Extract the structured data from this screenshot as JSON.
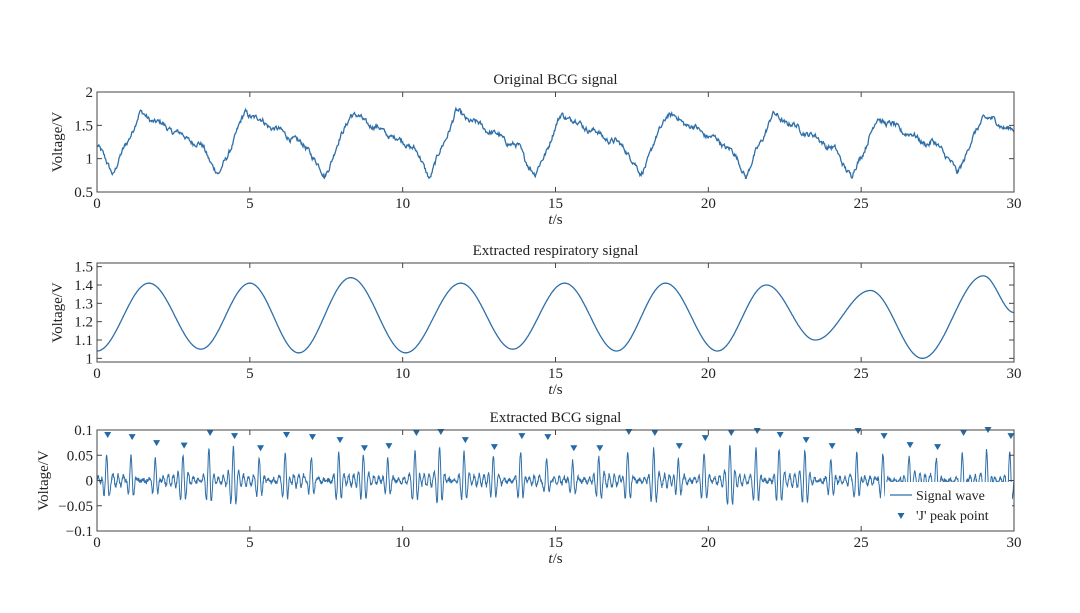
{
  "colors": {
    "line": "#2f6fa8",
    "marker": "#2369a6",
    "axis": "#444444"
  },
  "chart_data": [
    {
      "type": "line",
      "title": "Original BCG signal",
      "xlabel_italic": "t",
      "xlabel_unit": "/s",
      "ylabel": "Voltage/V",
      "xlim": [
        0,
        30
      ],
      "ylim": [
        0.5,
        2
      ],
      "xticks": [
        "0",
        "5",
        "10",
        "15",
        "20",
        "25",
        "30"
      ],
      "yticks": [
        "0.5",
        "1",
        "1.5",
        "2"
      ],
      "ytick_values": [
        0.5,
        1,
        1.5,
        2
      ],
      "description_series": {
        "period_s": 3.45,
        "phase_of_first_peak_s": 1.4,
        "peaks": [
          1.68,
          1.7,
          1.68,
          1.7,
          1.67,
          1.68,
          1.66,
          1.61,
          1.64
        ],
        "troughs": [
          0.78,
          0.74,
          0.72,
          0.72,
          0.74,
          0.75,
          0.74,
          0.72,
          0.78
        ],
        "noise": 0.04
      },
      "grid": false
    },
    {
      "type": "line",
      "title": "Extracted respiratory signal",
      "xlabel_italic": "t",
      "xlabel_unit": "/s",
      "ylabel": "Voltage/V",
      "xlim": [
        0,
        30
      ],
      "ylim": [
        0.98,
        1.52
      ],
      "xticks": [
        "0",
        "5",
        "10",
        "15",
        "20",
        "25",
        "30"
      ],
      "yticks": [
        "1",
        "1.1",
        "1.2",
        "1.3",
        "1.4",
        "1.5"
      ],
      "ytick_values": [
        1,
        1.1,
        1.2,
        1.3,
        1.4,
        1.5
      ],
      "extrema": [
        {
          "t": 0,
          "v": 1.04
        },
        {
          "t": 1.7,
          "v": 1.41
        },
        {
          "t": 3.4,
          "v": 1.05
        },
        {
          "t": 5.0,
          "v": 1.41
        },
        {
          "t": 6.6,
          "v": 1.03
        },
        {
          "t": 8.3,
          "v": 1.44
        },
        {
          "t": 10.1,
          "v": 1.03
        },
        {
          "t": 11.9,
          "v": 1.41
        },
        {
          "t": 13.6,
          "v": 1.05
        },
        {
          "t": 15.3,
          "v": 1.41
        },
        {
          "t": 17.0,
          "v": 1.04
        },
        {
          "t": 18.6,
          "v": 1.41
        },
        {
          "t": 20.3,
          "v": 1.04
        },
        {
          "t": 21.9,
          "v": 1.4
        },
        {
          "t": 23.5,
          "v": 1.1
        },
        {
          "t": 25.3,
          "v": 1.37
        },
        {
          "t": 27.0,
          "v": 1.0
        },
        {
          "t": 29.0,
          "v": 1.45
        },
        {
          "t": 30.0,
          "v": 1.25
        }
      ],
      "grid": false
    },
    {
      "type": "line",
      "title": "Extracted BCG signal",
      "xlabel_italic": "t",
      "xlabel_unit": "/s",
      "ylabel": "Voltage/V",
      "xlim": [
        0,
        30
      ],
      "ylim": [
        -0.1,
        0.1
      ],
      "xticks": [
        "0",
        "5",
        "10",
        "15",
        "20",
        "25",
        "30"
      ],
      "yticks": [
        "−0.1",
        "−0.05",
        "0",
        "0.05",
        "0.1"
      ],
      "ytick_values": [
        -0.1,
        -0.05,
        0,
        0.05,
        0.1
      ],
      "series": [
        {
          "name": "Signal wave",
          "style": "line"
        },
        {
          "name": "'J' peak point",
          "style": "triangle-down-marker"
        }
      ],
      "j_peaks": [
        {
          "t": 0.35,
          "v": 0.088
        },
        {
          "t": 1.15,
          "v": 0.084
        },
        {
          "t": 1.95,
          "v": 0.072
        },
        {
          "t": 2.85,
          "v": 0.067
        },
        {
          "t": 3.7,
          "v": 0.092
        },
        {
          "t": 4.5,
          "v": 0.086
        },
        {
          "t": 5.35,
          "v": 0.062
        },
        {
          "t": 6.2,
          "v": 0.088
        },
        {
          "t": 7.05,
          "v": 0.084
        },
        {
          "t": 7.95,
          "v": 0.078
        },
        {
          "t": 8.75,
          "v": 0.062
        },
        {
          "t": 9.55,
          "v": 0.066
        },
        {
          "t": 10.45,
          "v": 0.092
        },
        {
          "t": 11.25,
          "v": 0.094
        },
        {
          "t": 12.05,
          "v": 0.078
        },
        {
          "t": 13.0,
          "v": 0.064
        },
        {
          "t": 13.9,
          "v": 0.086
        },
        {
          "t": 14.75,
          "v": 0.084
        },
        {
          "t": 15.6,
          "v": 0.062
        },
        {
          "t": 16.45,
          "v": 0.062
        },
        {
          "t": 17.4,
          "v": 0.094
        },
        {
          "t": 18.25,
          "v": 0.092
        },
        {
          "t": 19.05,
          "v": 0.066
        },
        {
          "t": 19.9,
          "v": 0.082
        },
        {
          "t": 20.75,
          "v": 0.092
        },
        {
          "t": 21.6,
          "v": 0.096
        },
        {
          "t": 22.35,
          "v": 0.088
        },
        {
          "t": 23.2,
          "v": 0.078
        },
        {
          "t": 24.05,
          "v": 0.066
        },
        {
          "t": 24.9,
          "v": 0.096
        },
        {
          "t": 25.75,
          "v": 0.086
        },
        {
          "t": 26.6,
          "v": 0.068
        },
        {
          "t": 27.5,
          "v": 0.064
        },
        {
          "t": 28.35,
          "v": 0.092
        },
        {
          "t": 29.15,
          "v": 0.098
        },
        {
          "t": 29.9,
          "v": 0.086
        }
      ],
      "legend": "bottom-right",
      "grid": false
    }
  ]
}
